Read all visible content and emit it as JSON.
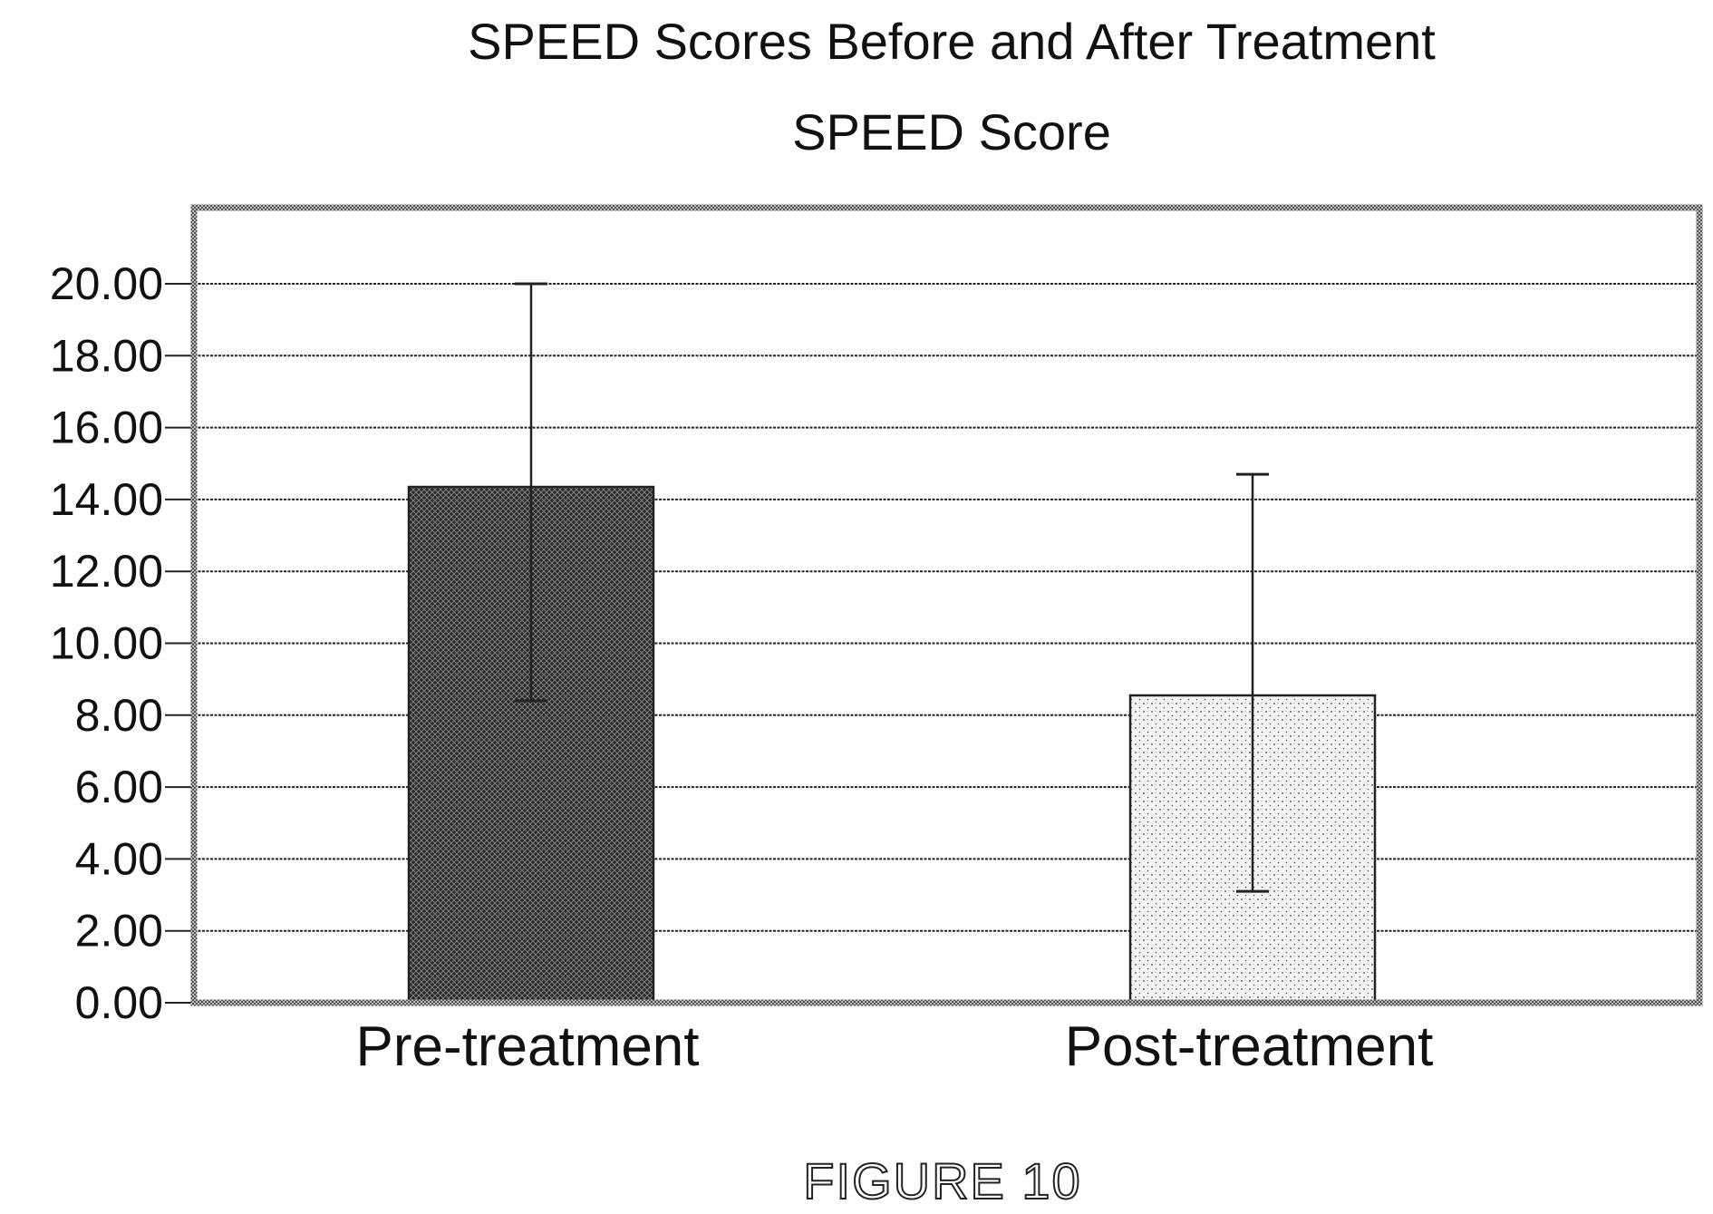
{
  "chart_data": {
    "type": "bar",
    "title": "SPEED Scores Before and After Treatment",
    "subtitle": "SPEED Score",
    "categories": [
      "Pre-treatment",
      "Post-treatment"
    ],
    "values": [
      14.35,
      8.55
    ],
    "error_bars": [
      {
        "low": 8.4,
        "high": 20.0
      },
      {
        "low": 3.1,
        "high": 14.7
      }
    ],
    "yticks": [
      "0.00",
      "2.00",
      "4.00",
      "6.00",
      "8.00",
      "10.00",
      "12.00",
      "14.00",
      "16.00",
      "18.00",
      "20.00"
    ],
    "ylim": [
      0,
      22
    ],
    "grid": true,
    "bar_styles": [
      "dark-crosshatch",
      "light-stipple"
    ]
  },
  "figure_label": "FIGURE 10"
}
